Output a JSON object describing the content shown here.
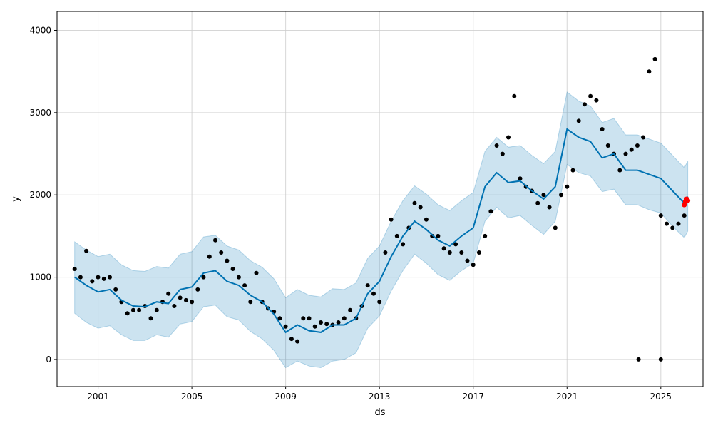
{
  "chart_data": {
    "type": "line",
    "xlabel": "ds",
    "ylabel": "y",
    "xlim": [
      1999.25,
      2026.8
    ],
    "ylim": [
      -330,
      4230
    ],
    "x_ticks": [
      2001,
      2005,
      2009,
      2013,
      2017,
      2021,
      2025
    ],
    "x_tick_labels": [
      "2001",
      "2005",
      "2009",
      "2013",
      "2017",
      "2021",
      "2025"
    ],
    "y_ticks": [
      0,
      1000,
      2000,
      3000,
      4000
    ],
    "y_tick_labels": [
      "0",
      "1000",
      "2000",
      "3000",
      "4000"
    ],
    "grid": true,
    "legend": "none",
    "colors": {
      "observed": "#000000",
      "forecast_line": "#0072B2",
      "uncertainty_band": "#0072B2",
      "highlight": "#ff0000"
    },
    "forecast": {
      "x": [
        2000.0,
        2000.5,
        2001.0,
        2001.5,
        2002.0,
        2002.5,
        2003.0,
        2003.5,
        2004.0,
        2004.5,
        2005.0,
        2005.5,
        2006.0,
        2006.5,
        2007.0,
        2007.5,
        2008.0,
        2008.5,
        2009.0,
        2009.5,
        2010.0,
        2010.5,
        2011.0,
        2011.5,
        2012.0,
        2012.5,
        2013.0,
        2013.5,
        2014.0,
        2014.5,
        2015.0,
        2015.5,
        2016.0,
        2016.5,
        2017.0,
        2017.5,
        2018.0,
        2018.5,
        2019.0,
        2019.5,
        2020.0,
        2020.5,
        2021.0,
        2021.5,
        2022.0,
        2022.5,
        2023.0,
        2023.5,
        2024.0,
        2024.5,
        2025.0,
        2025.5,
        2026.0,
        2026.15
      ],
      "yhat": [
        1000,
        900,
        820,
        850,
        720,
        650,
        640,
        700,
        680,
        850,
        880,
        1050,
        1080,
        950,
        900,
        780,
        700,
        550,
        330,
        420,
        350,
        330,
        420,
        420,
        500,
        800,
        950,
        1250,
        1500,
        1680,
        1580,
        1450,
        1380,
        1500,
        1600,
        2100,
        2270,
        2150,
        2170,
        2050,
        1950,
        2100,
        2800,
        2700,
        2650,
        2450,
        2500,
        2300,
        2300,
        2250,
        2200,
        2050,
        1900,
        1980
      ],
      "lower": [
        560,
        450,
        380,
        410,
        300,
        230,
        230,
        300,
        270,
        430,
        460,
        640,
        660,
        520,
        480,
        340,
        250,
        110,
        -100,
        -20,
        -80,
        -100,
        -20,
        0,
        80,
        380,
        530,
        830,
        1080,
        1280,
        1170,
        1030,
        960,
        1080,
        1170,
        1680,
        1850,
        1720,
        1750,
        1630,
        1520,
        1680,
        2370,
        2270,
        2230,
        2040,
        2070,
        1880,
        1880,
        1820,
        1780,
        1620,
        1480,
        1560
      ],
      "upper": [
        1430,
        1330,
        1250,
        1280,
        1150,
        1080,
        1070,
        1130,
        1110,
        1280,
        1310,
        1490,
        1510,
        1380,
        1330,
        1200,
        1120,
        980,
        750,
        850,
        780,
        760,
        860,
        850,
        930,
        1230,
        1380,
        1680,
        1930,
        2110,
        2010,
        1880,
        1810,
        1930,
        2030,
        2530,
        2700,
        2580,
        2600,
        2480,
        2380,
        2530,
        3250,
        3140,
        3080,
        2880,
        2930,
        2730,
        2730,
        2680,
        2630,
        2480,
        2330,
        2410
      ]
    },
    "observed": {
      "x": [
        2000.0,
        2000.25,
        2000.5,
        2000.75,
        2001.0,
        2001.25,
        2001.5,
        2001.75,
        2002.0,
        2002.25,
        2002.5,
        2002.75,
        2003.0,
        2003.25,
        2003.5,
        2003.75,
        2004.0,
        2004.25,
        2004.5,
        2004.75,
        2005.0,
        2005.25,
        2005.5,
        2005.75,
        2006.0,
        2006.25,
        2006.5,
        2006.75,
        2007.0,
        2007.25,
        2007.5,
        2007.75,
        2008.0,
        2008.25,
        2008.5,
        2008.75,
        2009.0,
        2009.25,
        2009.5,
        2009.75,
        2010.0,
        2010.25,
        2010.5,
        2010.75,
        2011.0,
        2011.25,
        2011.5,
        2011.75,
        2012.0,
        2012.25,
        2012.5,
        2012.75,
        2013.0,
        2013.25,
        2013.5,
        2013.75,
        2014.0,
        2014.25,
        2014.5,
        2014.75,
        2015.0,
        2015.25,
        2015.5,
        2015.75,
        2016.0,
        2016.25,
        2016.5,
        2016.75,
        2017.0,
        2017.25,
        2017.5,
        2017.75,
        2018.0,
        2018.25,
        2018.5,
        2018.75,
        2019.0,
        2019.25,
        2019.5,
        2019.75,
        2020.0,
        2020.25,
        2020.5,
        2020.75,
        2021.0,
        2021.25,
        2021.5,
        2021.75,
        2022.0,
        2022.25,
        2022.5,
        2022.75,
        2023.0,
        2023.25,
        2023.5,
        2023.75,
        2024.0,
        2024.25,
        2024.5,
        2024.75,
        2025.0,
        2025.25,
        2025.5,
        2025.75,
        2026.0
      ],
      "y": [
        1100,
        1000,
        1320,
        950,
        1000,
        980,
        1000,
        850,
        700,
        560,
        600,
        600,
        650,
        500,
        600,
        700,
        800,
        650,
        750,
        720,
        700,
        850,
        1000,
        1250,
        1450,
        1300,
        1200,
        1100,
        1000,
        900,
        700,
        1050,
        700,
        620,
        580,
        500,
        400,
        250,
        220,
        500,
        500,
        400,
        450,
        430,
        420,
        450,
        500,
        600,
        500,
        650,
        900,
        800,
        700,
        1300,
        1700,
        1500,
        1400,
        1600,
        1900,
        1850,
        1700,
        1500,
        1500,
        1350,
        1300,
        1400,
        1300,
        1200,
        1150,
        1300,
        1500,
        1800,
        2600,
        2500,
        2700,
        3200,
        2200,
        2100,
        2050,
        1900,
        2000,
        1850,
        1600,
        2000,
        2100,
        2300,
        2900,
        3100,
        3200,
        3150,
        2800,
        2600,
        2500,
        2300,
        2500,
        2550,
        2600,
        2700,
        3500,
        3650,
        1750,
        1650,
        1600,
        1650,
        1750
      ]
    },
    "outliers": {
      "x": [
        2024.05,
        2025.0
      ],
      "y": [
        0,
        0
      ]
    },
    "recent": {
      "x": [
        2026.0,
        2026.05,
        2026.1,
        2026.15
      ],
      "y": [
        1880,
        1920,
        1950,
        1930
      ]
    }
  }
}
